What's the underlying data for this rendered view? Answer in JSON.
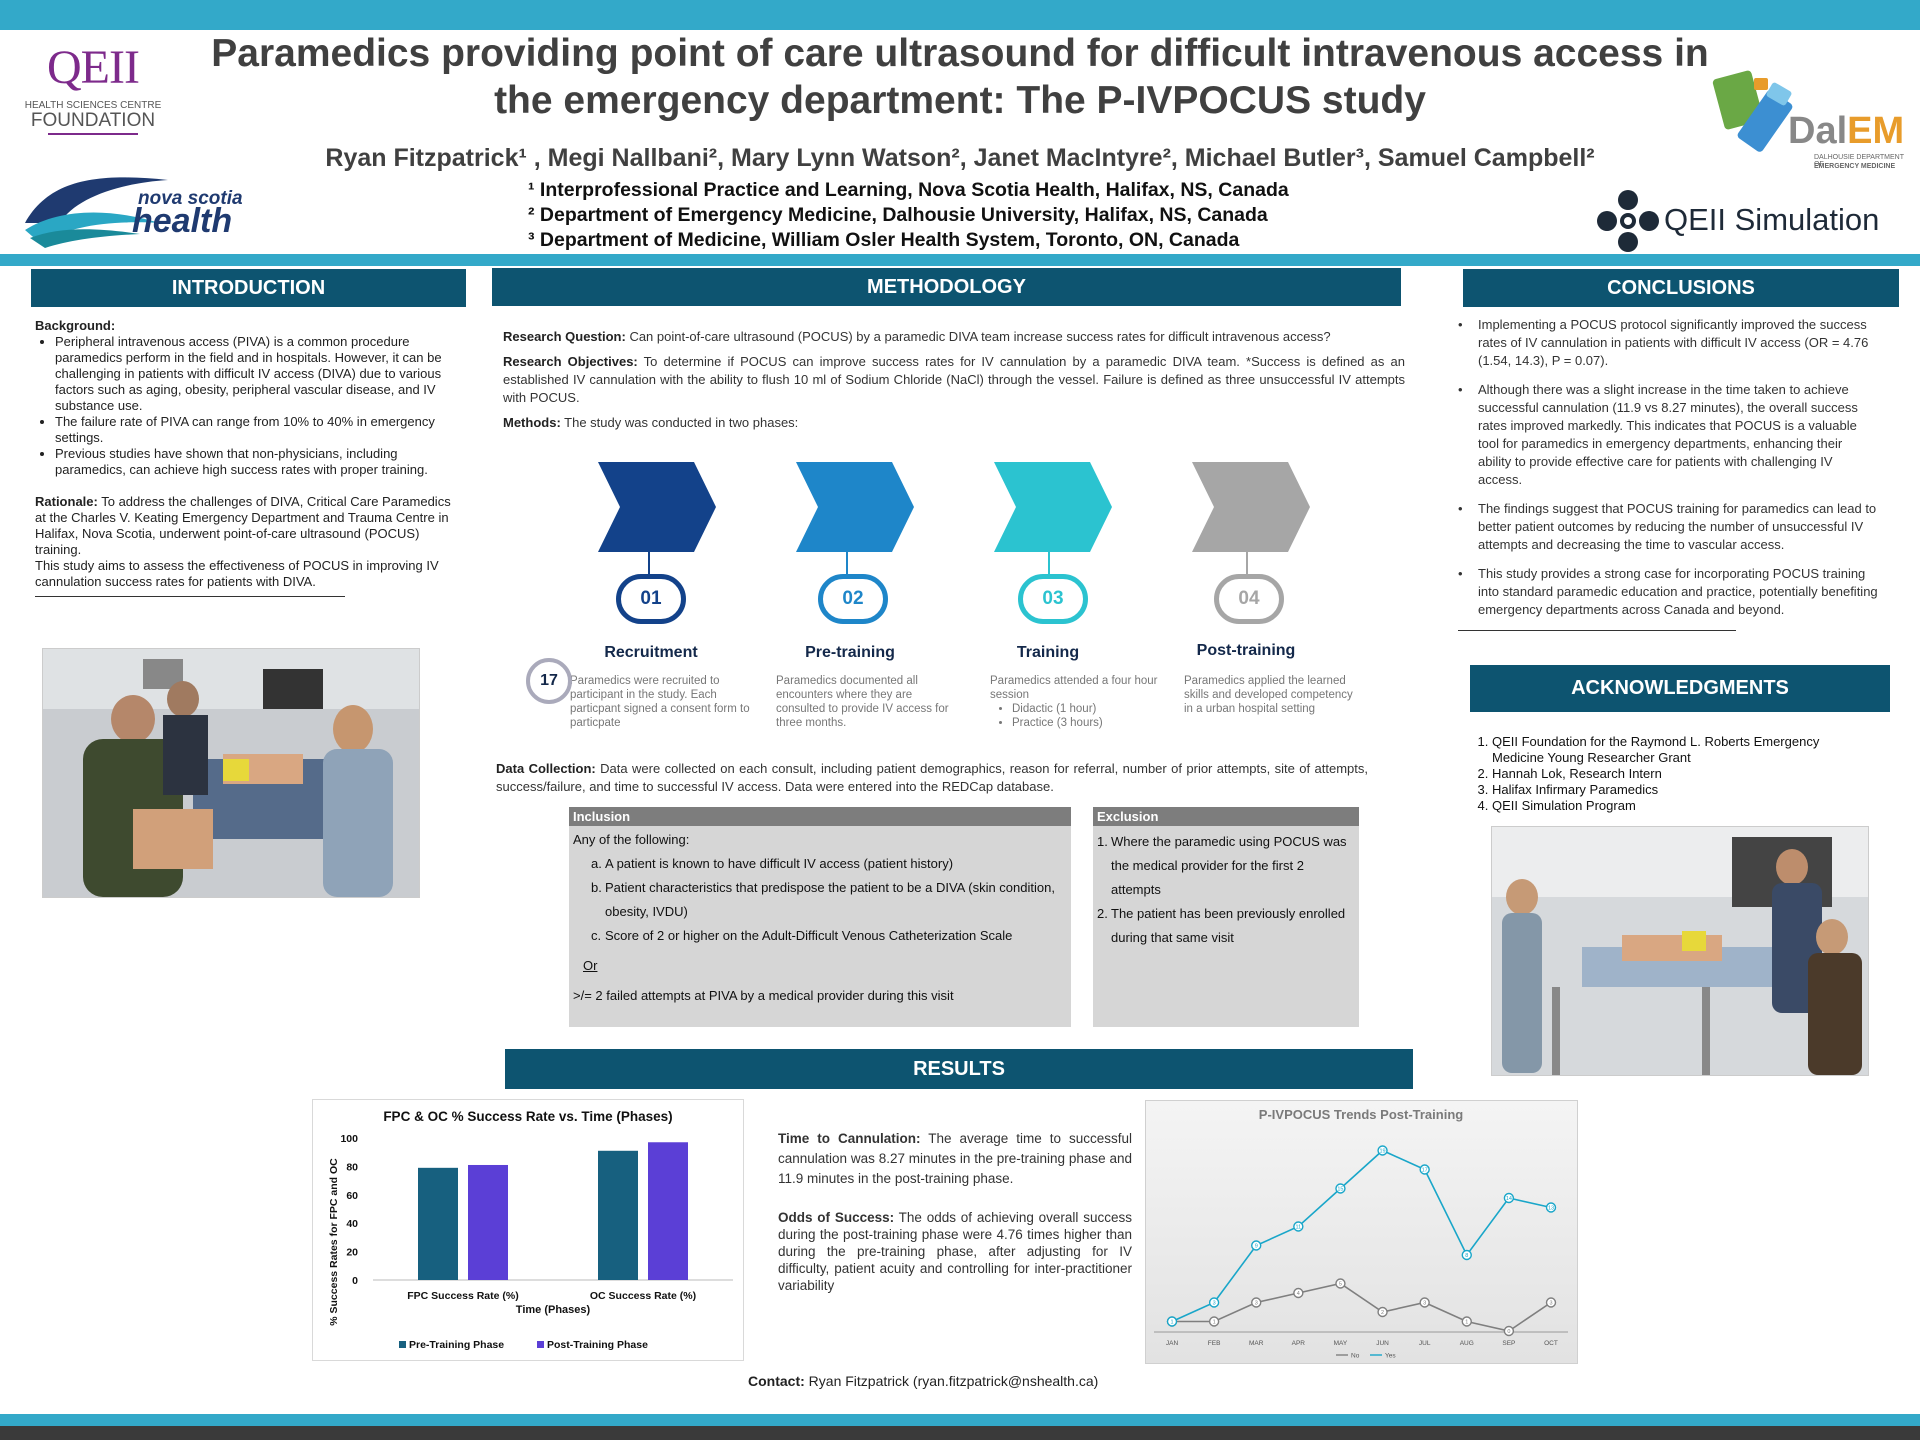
{
  "header": {
    "title_line1": "Paramedics providing point of care ultrasound for difficult intravenous access in",
    "title_line2": "the emergency department: The P-IVPOCUS study",
    "authors": "Ryan Fitzpatrick¹ , Megi Nallbani², Mary Lynn Watson², Janet MacIntyre², Michael Butler³, Samuel Campbell²",
    "affiliations": [
      "¹ Interprofessional Practice and Learning, Nova Scotia Health, Halifax, NS, Canada",
      "² Department of Emergency Medicine, Dalhousie University, Halifax, NS, Canada",
      "³ Department of Medicine, William Osler Health System, Toronto, ON, Canada"
    ]
  },
  "logos": {
    "qeii_main": "QEII",
    "qeii_sub1": "HEALTH SCIENCES CENTRE",
    "qeii_sub2": "FOUNDATION",
    "ns_line1": "nova scotia",
    "ns_line2": "health",
    "dalem": "DalEM",
    "dalem_sub1": "DALHOUSIE DEPARTMENT OF",
    "dalem_sub2": "EMERGENCY MEDICINE",
    "sim": "QEII Simulation"
  },
  "introduction": {
    "heading": "INTRODUCTION",
    "background_label": "Background:",
    "bullets": [
      "Peripheral intravenous access (PIVA) is a common procedure paramedics perform in the field and in hospitals. However, it can be challenging in patients with difficult IV access (DIVA) due to various factors such as aging, obesity, peripheral vascular disease, and IV substance use.",
      "The failure rate of PIVA can range from 10% to 40% in emergency settings.",
      "Previous studies have shown that non-physicians, including paramedics, can achieve high success rates with proper training."
    ],
    "rationale_label": "Rationale:",
    "rationale_text": " To address the challenges of DIVA, Critical Care Paramedics at the Charles V. Keating Emergency Department and Trauma Centre in Halifax, Nova Scotia, underwent point-of-care ultrasound (POCUS) training.",
    "aim_text": "This study aims to assess the effectiveness of POCUS in improving IV cannulation success rates for patients with DIVA."
  },
  "methodology": {
    "heading": "METHODOLOGY",
    "rq_label": "Research Question:",
    "rq_text": " Can point-of-care ultrasound (POCUS) by a paramedic DIVA team increase success rates for difficult intravenous access?",
    "ro_label": "Research Objectives:",
    "ro_text": " To determine if POCUS can improve success rates for IV cannulation by a paramedic DIVA team. *Success is defined as an established IV cannulation with the ability to flush 10 ml of Sodium Chloride (NaCl) through the vessel. Failure is defined as three unsuccessful IV attempts with POCUS.",
    "methods_label": "Methods:",
    "methods_text": " The study was conducted in two phases:",
    "phases": [
      {
        "num": "01",
        "title": "Recruitment",
        "text": "Paramedics were recruited to participant in the study. Each particpant signed a consent form to particpate",
        "color": "#13428a"
      },
      {
        "num": "02",
        "title": "Pre-training",
        "text": " Paramedics documented all encounters where they are consulted to provide IV access for three months.",
        "color": "#1e86c9"
      },
      {
        "num": "03",
        "title": "Training",
        "text": "Paramedics attended a four hour session",
        "sub": [
          "Didactic (1 hour)",
          "Practice (3 hours)"
        ],
        "color": "#2bc3d0"
      },
      {
        "num": "04",
        "title": "Post-training",
        "text": "Paramedics applied the learned skills and developed competency in a urban hospital setting",
        "color": "#a6a6a6"
      }
    ],
    "badge": "17",
    "dc_label": "Data Collection:",
    "dc_text": " Data were collected on each consult, including patient demographics, reason for referral, number of prior attempts, site of attempts, success/failure, and time to successful IV access. Data were entered into the REDCap database.",
    "inclusion": {
      "head": "Inclusion",
      "intro": "Any of the following:",
      "items": [
        "A patient is known to have difficult IV access (patient history)",
        "Patient characteristics that predispose the patient to be a DIVA (skin condition, obesity, IVDU)",
        "Score of 2 or higher on the Adult-Difficult Venous Catheterization Scale"
      ],
      "markers": [
        "a.",
        "b.",
        "c."
      ],
      "or": "Or",
      "last": ">/= 2 failed attempts at PIVA by a medical provider during this visit"
    },
    "exclusion": {
      "head": "Exclusion",
      "items": [
        "Where the paramedic using POCUS was the medical provider for the first 2 attempts",
        "The patient has been previously enrolled during that same visit"
      ],
      "markers": [
        "1.",
        "2."
      ]
    }
  },
  "conclusions": {
    "heading": "CONCLUSIONS",
    "bullets": [
      "Implementing a POCUS protocol significantly improved the success rates of IV cannulation in patients with difficult IV access (OR = 4.76 (1.54, 14.3), P = 0.07).",
      "Although there was a slight increase in the time taken to achieve successful cannulation (11.9 vs 8.27 minutes), the overall success rates improved markedly. This indicates that POCUS is a valuable tool for paramedics in emergency departments, enhancing their ability to provide effective care for patients with challenging IV access.",
      "The findings suggest that POCUS training for paramedics can lead to better patient outcomes by reducing the number of unsuccessful IV attempts and decreasing the time to vascular access.",
      "This study provides a strong case for incorporating POCUS training into standard paramedic education and practice, potentially benefiting emergency departments across Canada and beyond."
    ]
  },
  "acknowledgments": {
    "heading": "ACKNOWLEDGMENTS",
    "items": [
      "QEII Foundation for the Raymond L. Roberts Emergency Medicine Young Researcher Grant",
      "Hannah Lok, Research Intern",
      "Halifax Infirmary Paramedics",
      "QEII Simulation Program"
    ]
  },
  "results": {
    "heading": "RESULTS",
    "ttc_label": "Time to Cannulation:",
    "ttc_text": " The average time to successful cannulation was 8.27 minutes in the pre-training phase and 11.9 minutes in the post-training phase.",
    "odds_label": "Odds of Success:",
    "odds_text": " The odds of achieving overall success during the post-training phase were 4.76 times higher than during the pre-training phase, after adjusting for IV difficulty, patient acuity and controlling for inter-practitioner variability"
  },
  "contact": {
    "label": "Contact:",
    "text": " Ryan Fitzpatrick (ryan.fitzpatrick@nshealth.ca)"
  },
  "chart_data": [
    {
      "type": "bar",
      "title": "FPC & OC %  Success Rate vs. Time (Phases)",
      "xlabel": "Time (Phases)",
      "ylabel": "% Success Rates for FPC and OC",
      "categories": [
        "FPC Success Rate (%)",
        "OC Success Rate (%)"
      ],
      "series": [
        {
          "name": "Pre-Training Phase",
          "values": [
            79,
            91
          ],
          "color": "#17607f"
        },
        {
          "name": "Post-Training Phase",
          "values": [
            81,
            97
          ],
          "color": "#5b3fd6"
        }
      ],
      "ylim": [
        0,
        100
      ],
      "yticks": [
        0,
        20,
        40,
        60,
        80,
        100
      ],
      "legend": "bottom"
    },
    {
      "type": "line",
      "title": "P-IVPOCUS Trends Post-Training",
      "categories": [
        "JAN",
        "FEB",
        "MAR",
        "APR",
        "MAY",
        "JUN",
        "JUL",
        "AUG",
        "SEP",
        "OCT"
      ],
      "series": [
        {
          "name": "No",
          "values": [
            1,
            1,
            3,
            4,
            5,
            2,
            3,
            1,
            0,
            3
          ],
          "color": "#7f7f7f"
        },
        {
          "name": "Yes",
          "values": [
            1,
            3,
            9,
            11,
            15,
            19,
            17,
            8,
            14,
            13
          ],
          "color": "#19a6c9"
        }
      ],
      "legend": "bottom",
      "background": "#ececec"
    }
  ]
}
